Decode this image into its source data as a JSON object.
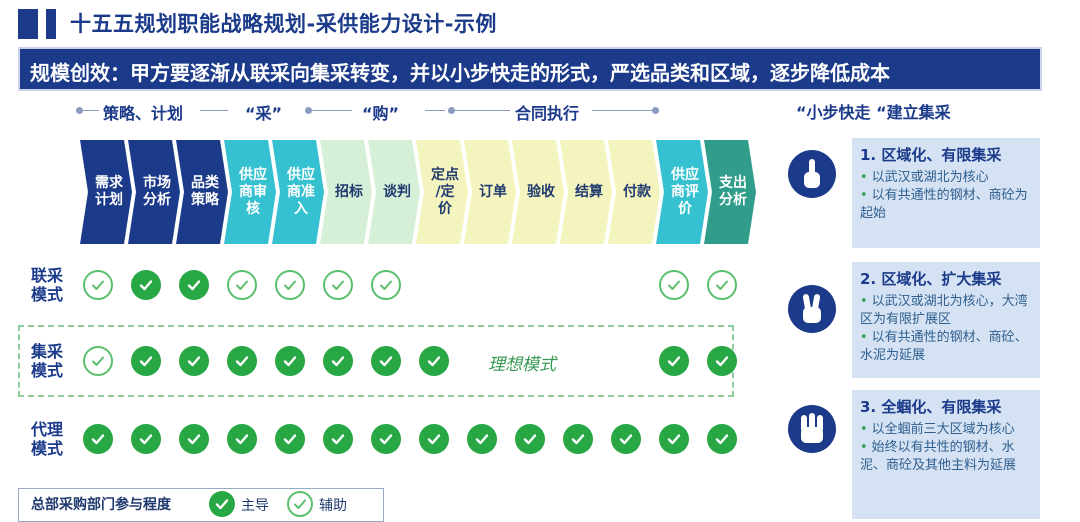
{
  "title": "十五五规划职能战略规划-采供能力设计-示例",
  "banner": "规模创效：甲方要逐渐从联采向集采转变，并以小步快走的形式，严选品类和区域，逐步降低成本",
  "phases": {
    "p1": "策略、计划",
    "p2": "“采”",
    "p3": "“购”",
    "p4": "合同执行"
  },
  "steps": [
    {
      "label": "需求\n计划",
      "color": "navy"
    },
    {
      "label": "市场\n分析",
      "color": "navy"
    },
    {
      "label": "品类\n策略",
      "color": "navy"
    },
    {
      "label": "供应\n商审\n核",
      "color": "teal"
    },
    {
      "label": "供应\n商准\n入",
      "color": "teal"
    },
    {
      "label": "招标",
      "color": "green"
    },
    {
      "label": "谈判",
      "color": "green"
    },
    {
      "label": "定点\n/定\n价",
      "color": "yellow"
    },
    {
      "label": "订单",
      "color": "yellow"
    },
    {
      "label": "验收",
      "color": "yellow"
    },
    {
      "label": "结算",
      "color": "yellow"
    },
    {
      "label": "付款",
      "color": "yellow"
    },
    {
      "label": "供应\n商评\n价",
      "color": "teal"
    },
    {
      "label": "支出\n分析",
      "color": "dteal"
    }
  ],
  "rows": [
    {
      "label": "联采\n模式",
      "marks": [
        "o",
        "f",
        "f",
        "o",
        "o",
        "o",
        "o",
        "",
        "",
        "",
        "",
        "",
        "o",
        "o"
      ]
    },
    {
      "label": "集采\n模式",
      "marks": [
        "o",
        "f",
        "f",
        "f",
        "f",
        "f",
        "f",
        "f",
        "",
        "",
        "",
        "",
        "f",
        "f"
      ]
    },
    {
      "label": "代理\n模式",
      "marks": [
        "f",
        "f",
        "f",
        "f",
        "f",
        "f",
        "f",
        "f",
        "f",
        "f",
        "f",
        "f",
        "f",
        "f"
      ]
    }
  ],
  "ideal_label": "理想模式",
  "legend": {
    "title": "总部采购部门参与程度",
    "lead": "主导",
    "assist": "辅助"
  },
  "right": {
    "heading": "“小步快走 “建立集采",
    "cards": [
      {
        "title": "1. 区域化、有限集采",
        "icon": "one-finger-hand-icon",
        "items": [
          "以武汉或湖北为核心",
          "以有共通性的钢材、商砼为起始"
        ]
      },
      {
        "title": "2. 区域化、扩大集采",
        "icon": "two-finger-hand-icon",
        "items": [
          "以武汉或湖北为核心，大湾区为有限扩展区",
          "以有共通性的钢材、商砼、水泥为延展"
        ]
      },
      {
        "title": "3. 全蝈化、有限集采",
        "icon": "three-finger-hand-icon",
        "items": [
          "以全蝈前三大区域为核心",
          "始终以有共性的钢材、水泥、商砼及其他主料为延展"
        ]
      }
    ]
  },
  "colors": {
    "navy": "#1b3a8a",
    "teal": "#35c1cf",
    "green_step": "#d6f0d8",
    "yellow_step": "#f4f4bf",
    "dark_teal": "#2f9d8a",
    "check_green": "#28a745"
  }
}
